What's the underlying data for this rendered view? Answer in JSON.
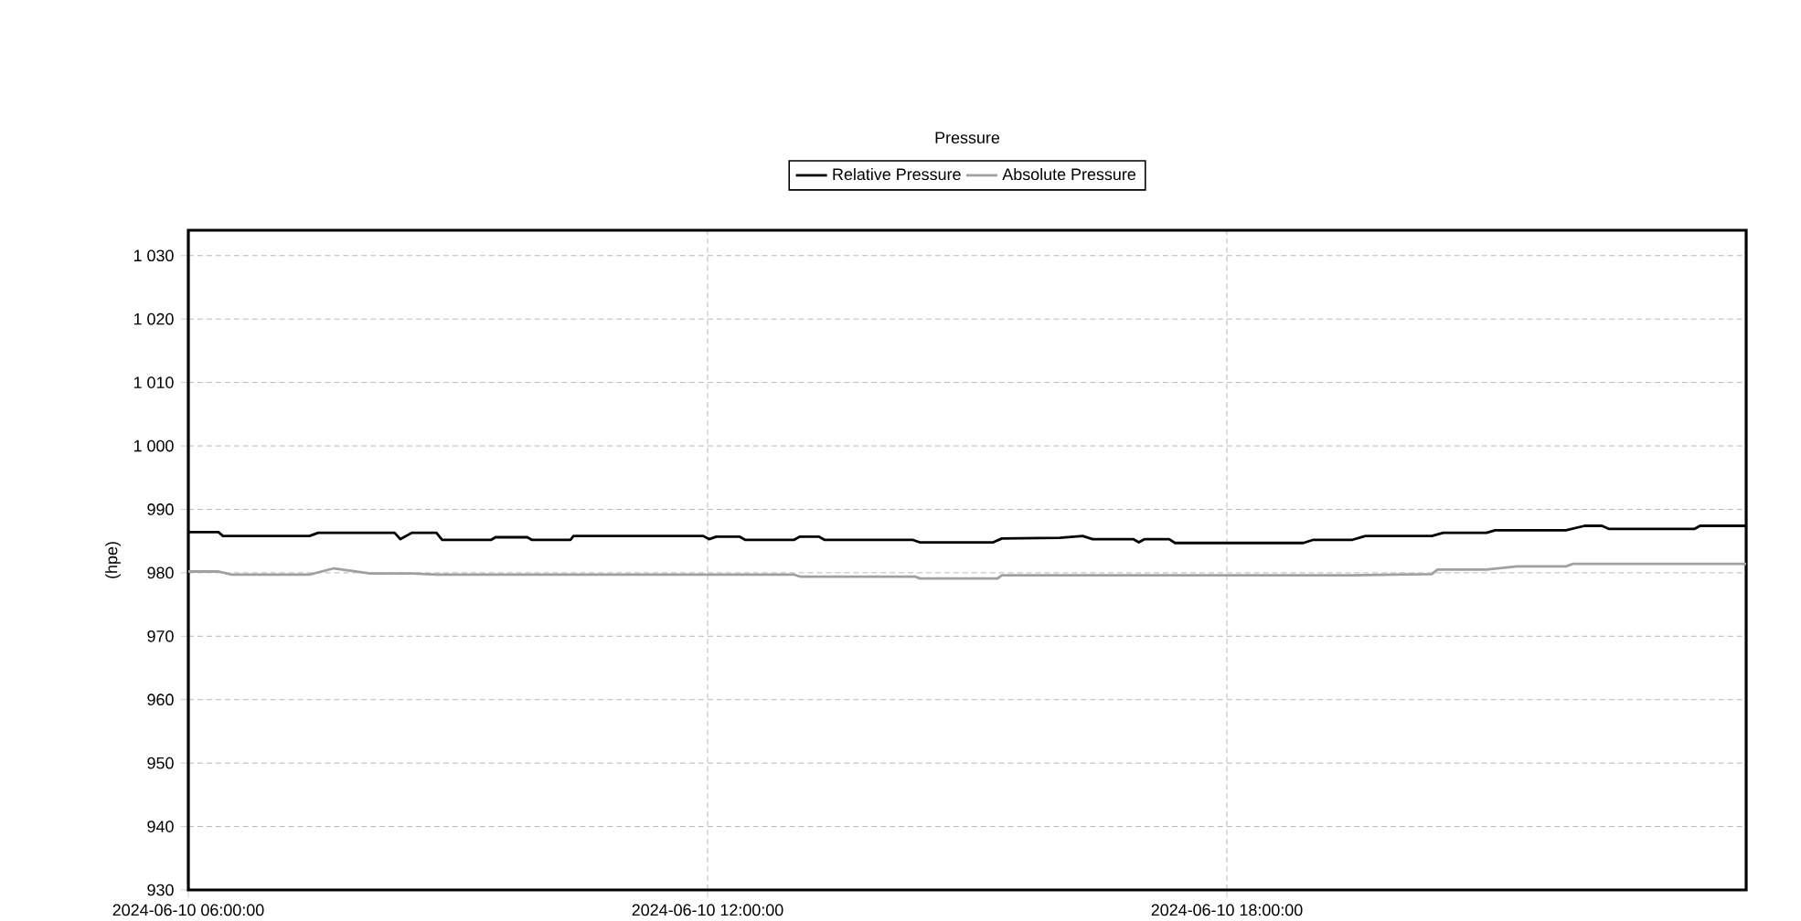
{
  "chart_data": {
    "type": "line",
    "title": "Pressure",
    "ylabel": "(hpe)",
    "xlim": [
      "2024-06-10T06:00",
      "2024-06-11T00:00"
    ],
    "ylim": [
      930,
      1034
    ],
    "xticks": [
      {
        "value": "2024-06-10T06:00",
        "label": "2024-06-10 06:00:00"
      },
      {
        "value": "2024-06-10T12:00",
        "label": "2024-06-10 12:00:00"
      },
      {
        "value": "2024-06-10T18:00",
        "label": "2024-06-10 18:00:00"
      }
    ],
    "yticks": [
      930,
      940,
      950,
      960,
      970,
      980,
      990,
      {
        "value": 1000,
        "label": "1 000"
      },
      {
        "value": 1010,
        "label": "1 010"
      },
      {
        "value": 1020,
        "label": "1 020"
      },
      {
        "value": 1030,
        "label": "1 030"
      }
    ],
    "grid": true,
    "legend": "top",
    "line_style": "solid",
    "marker": "none",
    "series": [
      {
        "name": "Relative Pressure",
        "color": "#000000",
        "x": [
          "2024-06-10T06:00",
          "2024-06-10T06:21",
          "2024-06-10T06:24",
          "2024-06-10T07:24",
          "2024-06-10T07:30",
          "2024-06-10T08:23",
          "2024-06-10T08:27",
          "2024-06-10T08:35",
          "2024-06-10T08:52",
          "2024-06-10T08:56",
          "2024-06-10T09:30",
          "2024-06-10T09:33",
          "2024-06-10T09:55",
          "2024-06-10T09:58",
          "2024-06-10T10:25",
          "2024-06-10T10:27",
          "2024-06-10T11:57",
          "2024-06-10T12:01",
          "2024-06-10T12:06",
          "2024-06-10T12:22",
          "2024-06-10T12:26",
          "2024-06-10T13:00",
          "2024-06-10T13:04",
          "2024-06-10T13:17",
          "2024-06-10T13:21",
          "2024-06-10T14:22",
          "2024-06-10T14:27",
          "2024-06-10T15:18",
          "2024-06-10T15:24",
          "2024-06-10T16:04",
          "2024-06-10T16:20",
          "2024-06-10T16:27",
          "2024-06-10T16:55",
          "2024-06-10T16:59",
          "2024-06-10T17:03",
          "2024-06-10T17:20",
          "2024-06-10T17:24",
          "2024-06-10T18:53",
          "2024-06-10T19:00",
          "2024-06-10T19:27",
          "2024-06-10T19:36",
          "2024-06-10T20:22",
          "2024-06-10T20:30",
          "2024-06-10T21:00",
          "2024-06-10T21:06",
          "2024-06-10T21:55",
          "2024-06-10T22:08",
          "2024-06-10T22:20",
          "2024-06-10T22:25",
          "2024-06-10T23:24",
          "2024-06-10T23:28",
          "2024-06-11T00:00"
        ],
        "values": [
          986.4,
          986.4,
          985.8,
          985.8,
          986.3,
          986.3,
          985.3,
          986.3,
          986.3,
          985.2,
          985.2,
          985.6,
          985.6,
          985.2,
          985.2,
          985.8,
          985.8,
          985.3,
          985.7,
          985.7,
          985.2,
          985.2,
          985.7,
          985.7,
          985.2,
          985.2,
          984.8,
          984.8,
          985.4,
          985.5,
          985.8,
          985.3,
          985.3,
          984.8,
          985.3,
          985.3,
          984.7,
          984.7,
          985.2,
          985.2,
          985.8,
          985.8,
          986.3,
          986.3,
          986.7,
          986.7,
          987.4,
          987.4,
          986.9,
          986.9,
          987.4,
          987.4
        ]
      },
      {
        "name": "Absolute Pressure",
        "color": "#a0a0a0",
        "x": [
          "2024-06-10T06:00",
          "2024-06-10T06:21",
          "2024-06-10T06:30",
          "2024-06-10T07:24",
          "2024-06-10T07:41",
          "2024-06-10T08:06",
          "2024-06-10T08:35",
          "2024-06-10T08:52",
          "2024-06-10T13:00",
          "2024-06-10T13:04",
          "2024-06-10T14:24",
          "2024-06-10T14:27",
          "2024-06-10T15:21",
          "2024-06-10T15:24",
          "2024-06-10T19:27",
          "2024-06-10T20:22",
          "2024-06-10T20:26",
          "2024-06-10T21:00",
          "2024-06-10T21:21",
          "2024-06-10T21:55",
          "2024-06-10T22:00",
          "2024-06-11T00:00"
        ],
        "values": [
          980.2,
          980.2,
          979.7,
          979.7,
          980.7,
          979.9,
          979.9,
          979.7,
          979.7,
          979.4,
          979.4,
          979.1,
          979.1,
          979.6,
          979.6,
          979.8,
          980.5,
          980.5,
          981.0,
          981.0,
          981.4,
          981.4
        ]
      }
    ]
  }
}
